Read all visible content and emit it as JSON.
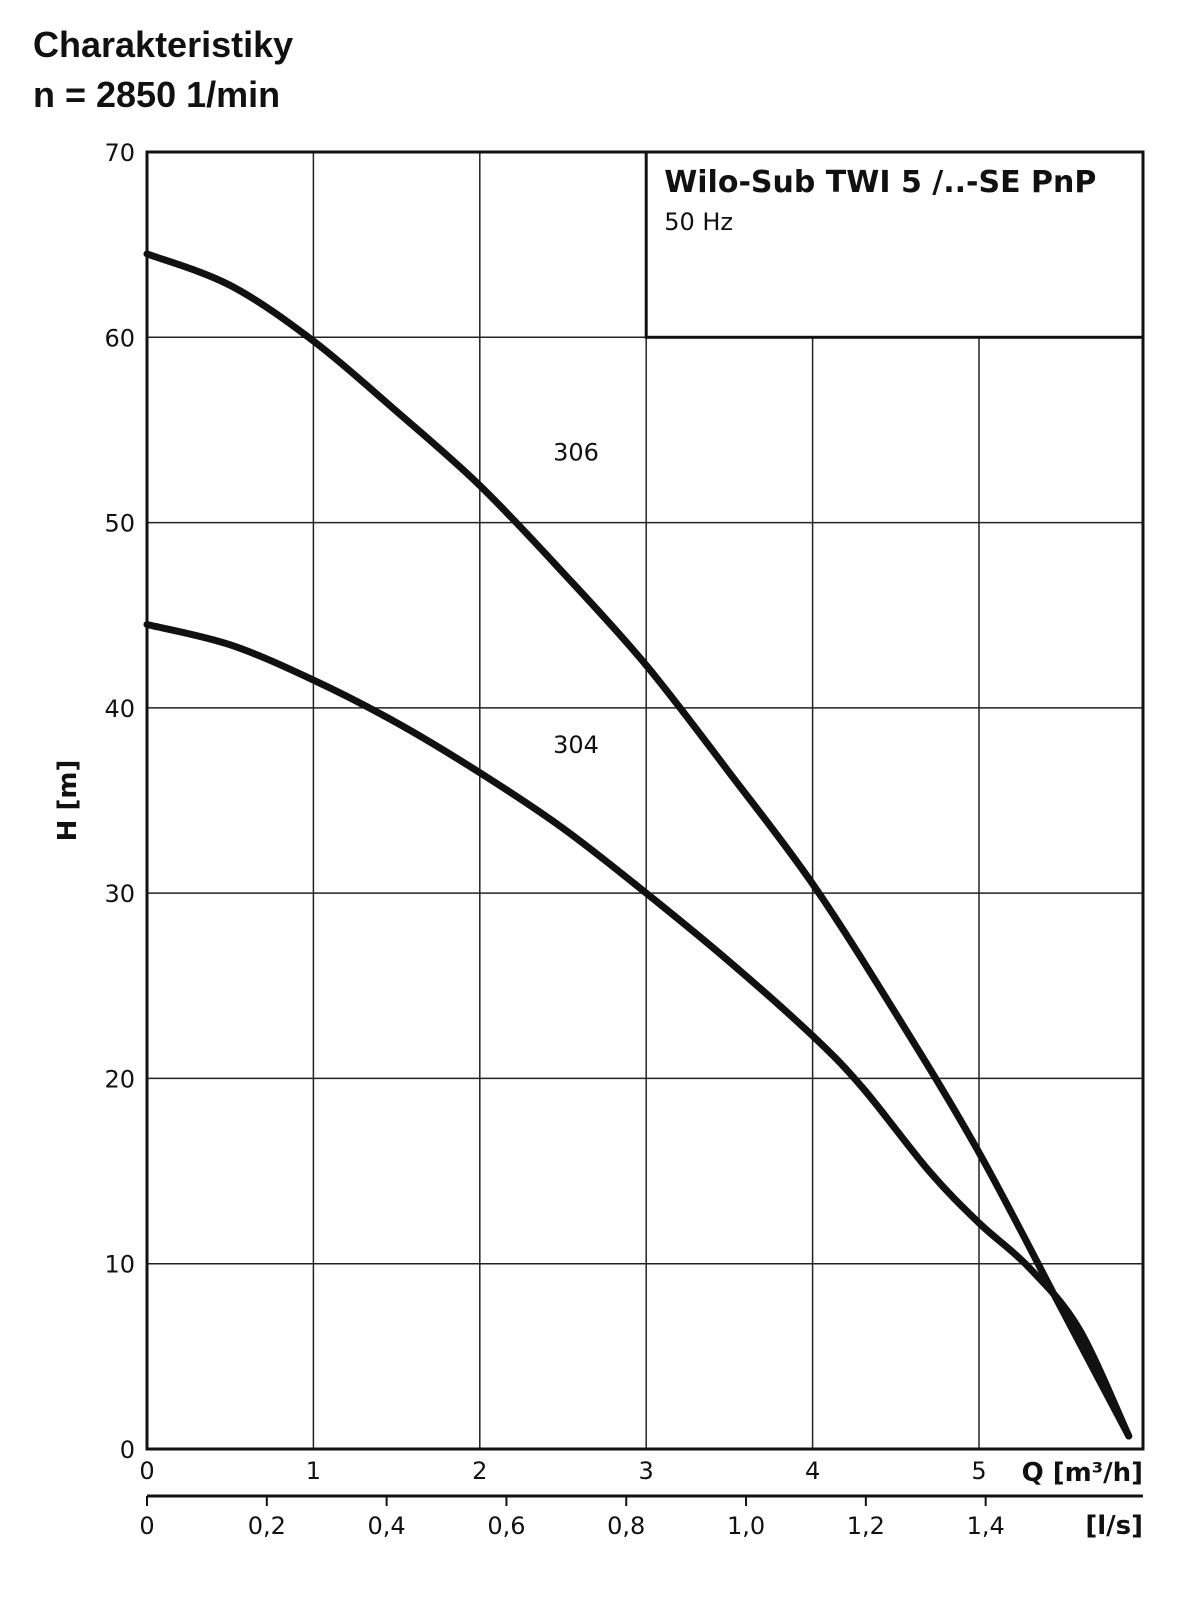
{
  "header": {
    "line1": "Charakteristiky",
    "line2": "n = 2850 1/min"
  },
  "chart_data": {
    "type": "line",
    "grid": true,
    "legend_placement": "top-right",
    "legend_title": "Wilo-Sub TWI 5 /..-SE PnP",
    "legend_subtitle": "50 Hz",
    "xlabel": "Q [m³/h]",
    "x2label": "[l/s]",
    "ylabel": "H [m]",
    "xlim": [
      0,
      6
    ],
    "ylim": [
      0,
      70
    ],
    "xticks": [
      "0",
      "1",
      "2",
      "3",
      "4",
      "5"
    ],
    "x2ticks": [
      "0",
      "0,2",
      "0,4",
      "0,6",
      "0,8",
      "1,0",
      "1,2",
      "1,4"
    ],
    "yticks": [
      "0",
      "10",
      "20",
      "30",
      "40",
      "50",
      "60",
      "70"
    ],
    "series": [
      {
        "name": "306",
        "x": [
          0,
          0.5,
          1.0,
          1.5,
          2.0,
          2.5,
          3.0,
          3.5,
          4.0,
          4.5,
          5.0,
          5.5,
          5.9
        ],
        "y": [
          64.5,
          62.8,
          59.8,
          56.0,
          52.0,
          47.3,
          42.3,
          36.5,
          30.5,
          23.5,
          16.0,
          7.5,
          0.7
        ]
      },
      {
        "name": "304",
        "x": [
          0,
          0.5,
          1.0,
          1.5,
          2.0,
          2.5,
          3.0,
          3.5,
          4.0,
          4.3,
          4.7,
          5.0,
          5.3,
          5.6,
          5.9
        ],
        "y": [
          44.5,
          43.4,
          41.5,
          39.2,
          36.5,
          33.5,
          30.0,
          26.3,
          22.3,
          19.5,
          15.0,
          12.2,
          9.8,
          6.5,
          0.7
        ]
      }
    ]
  }
}
